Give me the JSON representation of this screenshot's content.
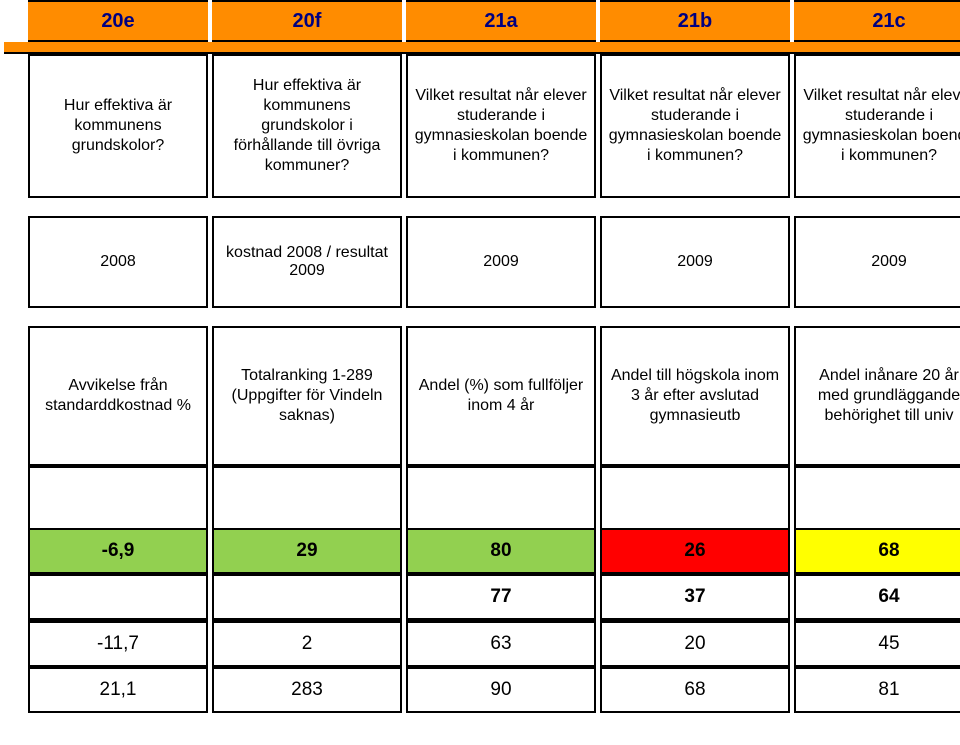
{
  "colors": {
    "orange": "#ff8c00",
    "navy": "#000080",
    "black": "#000000",
    "green": "#92d050",
    "red": "#ff0000",
    "yellow": "#ffff00",
    "white": "#ffffff"
  },
  "header": [
    "",
    "20e",
    "20f",
    "21a",
    "21b",
    "21c"
  ],
  "descriptions": [
    "Hur effektiva är kommunens grundskolor?",
    "Hur effektiva är kommunens grundskolor i förhållande till övriga kommuner?",
    "Vilket resultat når elever studerande i gymnasieskolan boende i kommunen?",
    "Vilket resultat når elever studerande i gymnasieskolan boende i kommunen?",
    "Vilket resultat når elever studerande i gymnasieskolan boende i kommunen?"
  ],
  "years": [
    "2008",
    "kostnad 2008 / resultat 2009",
    "2009",
    "2009",
    "2009"
  ],
  "metrics": [
    "Avvikelse från standarddkostnad %",
    "Totalranking 1-289 (Uppgifter för Vindeln saknas)",
    "Andel (%) som fullföljer inom 4 år",
    "Andel till högskola inom 3 år efter avslutad gymnasieutb",
    "Andel inånare 20 år med grundläggande behörighet till univ"
  ],
  "rows": [
    {
      "values": [
        "-6,9",
        "29",
        "80",
        "26",
        "68"
      ],
      "bg": [
        "#92d050",
        "#92d050",
        "#92d050",
        "#ff0000",
        "#ffff00"
      ],
      "bold": true
    },
    {
      "values": [
        "",
        "",
        "77",
        "37",
        "64"
      ],
      "bg": [
        "#ffffff",
        "#ffffff",
        "#ffffff",
        "#ffffff",
        "#ffffff"
      ],
      "bold": true
    },
    {
      "values": [
        "-11,7",
        "2",
        "63",
        "20",
        "45"
      ],
      "bg": [
        "#ffffff",
        "#ffffff",
        "#ffffff",
        "#ffffff",
        "#ffffff"
      ],
      "bold": false
    },
    {
      "values": [
        "21,1",
        "283",
        "90",
        "68",
        "81"
      ],
      "bg": [
        "#ffffff",
        "#ffffff",
        "#ffffff",
        "#ffffff",
        "#ffffff"
      ],
      "bold": false
    }
  ]
}
